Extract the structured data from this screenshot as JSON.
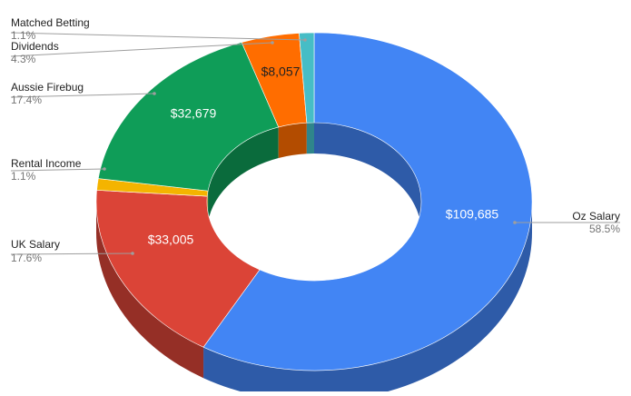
{
  "chart_data": {
    "type": "pie",
    "variant": "3d-donut",
    "title": "",
    "slices": [
      {
        "label": "Oz Salary",
        "value": 109685,
        "value_label": "$109,685",
        "percent_label": "58.5%",
        "color": "#4285f4",
        "side_color": "#2e5ba8"
      },
      {
        "label": "UK Salary",
        "value": 33005,
        "value_label": "$33,005",
        "percent_label": "17.6%",
        "color": "#db4437",
        "side_color": "#952f26"
      },
      {
        "label": "Rental Income",
        "value": 2063,
        "value_label": "",
        "percent_label": "1.1%",
        "color": "#f4b400",
        "side_color": "#a67c00"
      },
      {
        "label": "Aussie Firebug",
        "value": 32679,
        "value_label": "$32,679",
        "percent_label": "17.4%",
        "color": "#0f9d58",
        "side_color": "#0a6b3c"
      },
      {
        "label": "Dividends",
        "value": 8057,
        "value_label": "$8,057",
        "percent_label": "4.3%",
        "color": "#ff6d00",
        "side_color": "#b34c00"
      },
      {
        "label": "Matched Betting",
        "value": 2063,
        "value_label": "",
        "percent_label": "1.1%",
        "color": "#46bdc6",
        "side_color": "#2f858b"
      }
    ],
    "legend": "none",
    "labels": "outside-with-leader-lines"
  }
}
